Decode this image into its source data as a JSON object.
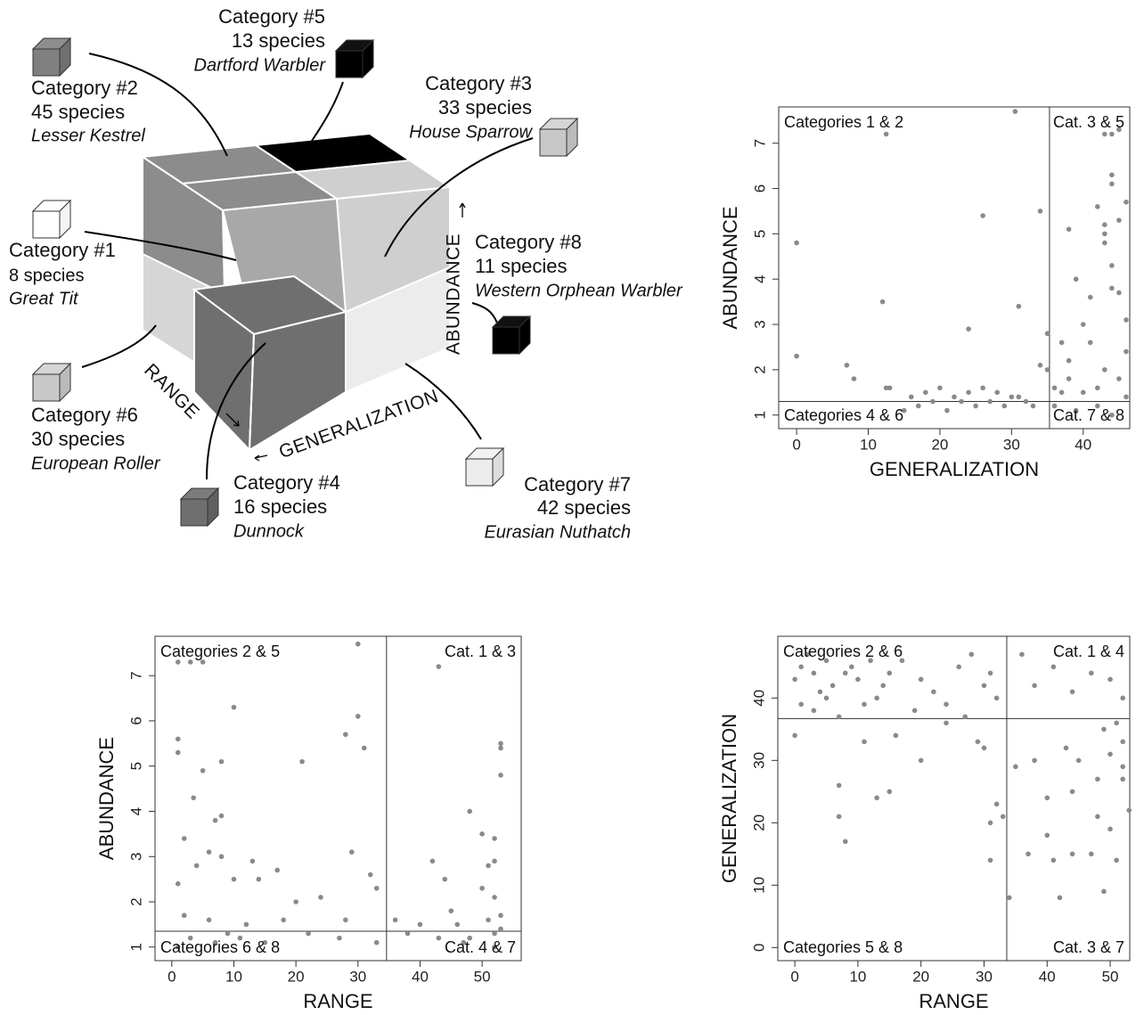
{
  "diagram": {
    "axes": {
      "range": "RANGE",
      "generalization": "GENERALIZATION",
      "abundance": "ABUNDANCE"
    },
    "categories": [
      {
        "title": "Category #1",
        "count": "8 species",
        "species": "Great Tit"
      },
      {
        "title": "Category #2",
        "count": "45 species",
        "species": "Lesser Kestrel"
      },
      {
        "title": "Category #3",
        "count": "33 species",
        "species": "House Sparrow"
      },
      {
        "title": "Category #4",
        "count": "16 species",
        "species": "Dunnock"
      },
      {
        "title": "Category #5",
        "count": "13 species",
        "species": "Dartford Warbler"
      },
      {
        "title": "Category #6",
        "count": "30 species",
        "species": "European Roller"
      },
      {
        "title": "Category #7",
        "count": "42 species",
        "species": "Eurasian Nuthatch"
      },
      {
        "title": "Category #8",
        "count": "11 species",
        "species": "Western Orphean Warbler"
      }
    ]
  },
  "chart_data": [
    {
      "type": "scatter",
      "x_label": "GENERALIZATION",
      "y_label": "ABUNDANCE",
      "color": "#8a8a8a",
      "xlim": [
        -2.5,
        46.5
      ],
      "ylim": [
        0.7,
        7.8
      ],
      "xticks": [
        0,
        10,
        20,
        30,
        40
      ],
      "yticks": [
        1,
        2,
        3,
        4,
        5,
        6,
        7
      ],
      "vline": 35.3,
      "hline": 1.3,
      "annotations": [
        {
          "text": "Categories 1 & 2",
          "position": "top-left"
        },
        {
          "text": "Cat. 3 & 5",
          "position": "top-right"
        },
        {
          "text": "Categories 4 & 6",
          "position": "bottom-left"
        },
        {
          "text": "Cat. 7 & 8",
          "position": "bottom-right"
        }
      ],
      "x": [
        0,
        0,
        12.5,
        30.5,
        12,
        26,
        34,
        24,
        31,
        35,
        7,
        8,
        12.5,
        13,
        16,
        18,
        20,
        22,
        24,
        26,
        28,
        30,
        32,
        34,
        35,
        15,
        17,
        19,
        21,
        23,
        25,
        27,
        29,
        31,
        33,
        36,
        37,
        38,
        39,
        40,
        42,
        43,
        44,
        44,
        44,
        45,
        45,
        46,
        43,
        44,
        45,
        46,
        46,
        37,
        38,
        41,
        43,
        45,
        39,
        42,
        44,
        36,
        40,
        41,
        43,
        43,
        44,
        38,
        46,
        42
      ],
      "values": [
        4.8,
        2.3,
        7.2,
        7.7,
        3.5,
        5.4,
        5.5,
        2.9,
        3.4,
        2.8,
        2.1,
        1.8,
        1.6,
        1.6,
        1.4,
        1.5,
        1.6,
        1.4,
        1.5,
        1.6,
        1.5,
        1.4,
        1.3,
        2.1,
        2.0,
        1.1,
        1.2,
        1.3,
        1.1,
        1.3,
        1.2,
        1.3,
        1.2,
        1.4,
        1.2,
        1.2,
        1.5,
        5.1,
        4.0,
        3.0,
        5.6,
        7.2,
        7.2,
        6.3,
        6.1,
        5.3,
        7.3,
        5.7,
        4.8,
        4.3,
        3.7,
        3.1,
        2.4,
        2.6,
        2.2,
        2.6,
        2.0,
        1.8,
        1.1,
        1.2,
        1.0,
        1.6,
        1.5,
        3.6,
        5.0,
        5.2,
        3.8,
        1.8,
        1.4,
        1.6
      ]
    },
    {
      "type": "scatter",
      "x_label": "RANGE",
      "y_label": "ABUNDANCE",
      "color": "#8a8a8a",
      "xlim": [
        -2.7,
        56.3
      ],
      "ylim": [
        0.7,
        7.87
      ],
      "xticks": [
        0,
        10,
        20,
        30,
        40,
        50
      ],
      "yticks": [
        1,
        2,
        3,
        4,
        5,
        6,
        7
      ],
      "vline": 34.6,
      "hline": 1.35,
      "annotations": [
        {
          "text": "Categories 2 & 5",
          "position": "top-left"
        },
        {
          "text": "Cat. 1 & 3",
          "position": "top-right"
        },
        {
          "text": "Categories 6 & 8",
          "position": "bottom-left"
        },
        {
          "text": "Cat. 4 & 7",
          "position": "bottom-right"
        }
      ],
      "x": [
        1,
        3,
        5,
        30,
        43,
        10,
        30,
        1,
        1,
        8,
        21,
        31,
        5,
        28,
        53,
        53,
        53,
        3.5,
        7,
        8,
        2,
        48,
        50,
        6,
        8,
        13,
        17,
        29,
        42,
        52,
        51,
        52,
        1,
        4,
        10,
        14,
        20,
        24,
        32,
        33,
        44,
        50,
        52,
        2,
        6,
        12,
        18,
        28,
        36,
        40,
        46,
        53,
        3,
        9,
        15,
        22,
        27,
        33,
        38,
        43,
        48,
        52,
        1,
        7,
        11,
        47,
        52,
        53,
        51,
        45
      ],
      "values": [
        7.3,
        7.3,
        7.3,
        7.7,
        7.2,
        6.3,
        6.1,
        5.6,
        5.3,
        5.1,
        5.1,
        5.4,
        4.9,
        5.7,
        5.5,
        5.4,
        4.8,
        4.3,
        3.8,
        3.9,
        3.4,
        4.0,
        3.5,
        3.1,
        3.0,
        2.9,
        2.7,
        3.1,
        2.9,
        3.4,
        2.8,
        2.9,
        2.4,
        2.8,
        2.5,
        2.5,
        2.0,
        2.1,
        2.6,
        2.3,
        2.5,
        2.3,
        2.1,
        1.7,
        1.6,
        1.5,
        1.6,
        1.6,
        1.6,
        1.5,
        1.5,
        1.7,
        1.2,
        1.3,
        1.1,
        1.3,
        1.2,
        1.1,
        1.3,
        1.2,
        1.2,
        1.3,
        1.0,
        1.1,
        1.2,
        1.1,
        1.0,
        1.4,
        1.6,
        1.8
      ]
    },
    {
      "type": "scatter",
      "x_label": "RANGE",
      "y_label": "GENERALIZATION",
      "color": "#8a8a8a",
      "xlim": [
        -2.7,
        53.1
      ],
      "ylim": [
        -2.1,
        49.9
      ],
      "xticks": [
        0,
        10,
        20,
        30,
        40,
        50
      ],
      "yticks": [
        0,
        10,
        20,
        30,
        40
      ],
      "vline": 33.6,
      "hline": 36.7,
      "annotations": [
        {
          "text": "Categories 2 & 6",
          "position": "top-left"
        },
        {
          "text": "Cat. 1 & 4",
          "position": "top-right"
        },
        {
          "text": "Categories 5 & 8",
          "position": "bottom-left"
        },
        {
          "text": "Cat. 3 & 7",
          "position": "bottom-right"
        }
      ],
      "x": [
        0,
        1,
        2,
        3,
        4,
        5,
        6,
        8,
        9,
        10,
        12,
        14,
        15,
        17,
        20,
        22,
        24,
        26,
        28,
        30,
        31,
        32,
        1,
        3,
        5,
        7,
        11,
        13,
        19,
        27,
        0,
        7,
        7,
        8,
        11,
        13,
        15,
        16,
        20,
        24,
        29,
        30,
        31,
        31,
        32,
        33,
        34,
        36,
        38,
        41,
        44,
        47,
        50,
        52,
        35,
        37,
        38,
        40,
        41,
        42,
        43,
        44,
        45,
        47,
        48,
        49,
        50,
        51,
        52,
        52,
        51,
        49,
        50,
        53,
        52,
        48,
        44,
        40
      ],
      "values": [
        43,
        45,
        47,
        44,
        41,
        46,
        42,
        44,
        45,
        43,
        46,
        42,
        44,
        46,
        43,
        41,
        39,
        45,
        47,
        42,
        44,
        40,
        39,
        38,
        40,
        37,
        39,
        40,
        38,
        37,
        34,
        26,
        21,
        17,
        33,
        24,
        25,
        34,
        30,
        36,
        33,
        32,
        20,
        14,
        23,
        21,
        8,
        47,
        42,
        45,
        41,
        44,
        43,
        40,
        29,
        15,
        30,
        24,
        14,
        8,
        32,
        15,
        30,
        15,
        27,
        9,
        19,
        14,
        29,
        33,
        36,
        35,
        31,
        22,
        27,
        21,
        25,
        18
      ]
    }
  ]
}
